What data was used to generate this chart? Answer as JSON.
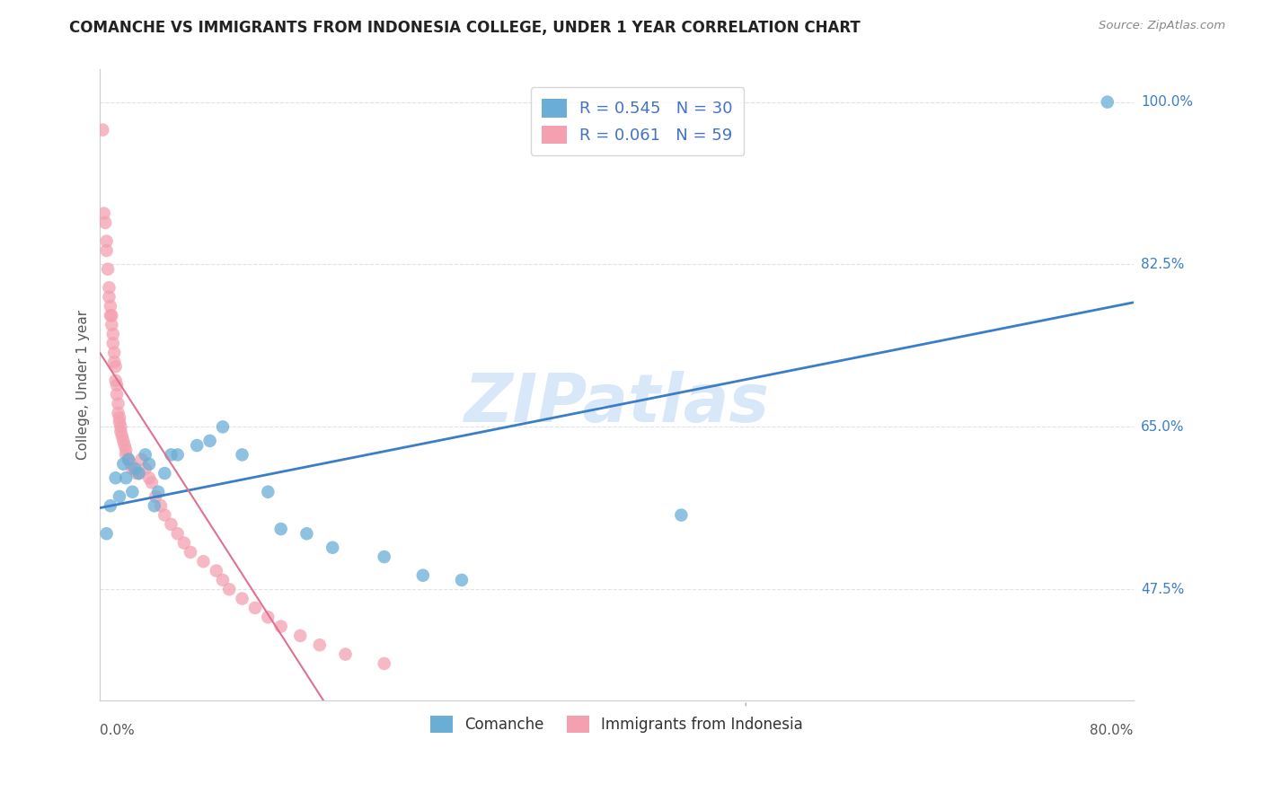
{
  "title": "COMANCHE VS IMMIGRANTS FROM INDONESIA COLLEGE, UNDER 1 YEAR CORRELATION CHART",
  "source_text": "Source: ZipAtlas.com",
  "ylabel": "College, Under 1 year",
  "xlabel_bottom_left": "0.0%",
  "xlabel_bottom_right": "80.0%",
  "right_ytick_vals": [
    0.475,
    0.65,
    0.825,
    1.0
  ],
  "right_ytick_labels": [
    "47.5%",
    "65.0%",
    "82.5%",
    "100.0%"
  ],
  "xlim": [
    0.0,
    0.8
  ],
  "ylim": [
    0.355,
    1.035
  ],
  "blue_color": "#6aaed6",
  "pink_color": "#f4a0b0",
  "blue_line_color": "#3a7ec8",
  "pink_line_color": "#e07090",
  "watermark_color": "#c8d8f0",
  "background_color": "#ffffff",
  "grid_color": "#dce3ed",
  "legend_blue_label": "R = 0.545   N = 30",
  "legend_pink_label": "R = 0.061   N = 59",
  "legend_blue_label_colored": [
    "R = ",
    "0.545",
    "   N = ",
    "30"
  ],
  "legend_pink_label_colored": [
    "R = ",
    "0.061",
    "   N = ",
    "59"
  ],
  "comanche_x": [
    0.005,
    0.008,
    0.012,
    0.015,
    0.018,
    0.02,
    0.022,
    0.025,
    0.027,
    0.03,
    0.035,
    0.038,
    0.042,
    0.045,
    0.05,
    0.055,
    0.06,
    0.075,
    0.085,
    0.095,
    0.11,
    0.13,
    0.14,
    0.16,
    0.18,
    0.22,
    0.25,
    0.28,
    0.45,
    0.78
  ],
  "comanche_y": [
    0.535,
    0.565,
    0.595,
    0.575,
    0.61,
    0.595,
    0.615,
    0.58,
    0.605,
    0.6,
    0.62,
    0.61,
    0.565,
    0.58,
    0.6,
    0.62,
    0.62,
    0.63,
    0.635,
    0.65,
    0.62,
    0.58,
    0.54,
    0.535,
    0.52,
    0.51,
    0.49,
    0.485,
    0.555,
    1.0
  ],
  "indonesia_x": [
    0.002,
    0.003,
    0.004,
    0.005,
    0.005,
    0.006,
    0.007,
    0.007,
    0.008,
    0.008,
    0.009,
    0.009,
    0.01,
    0.01,
    0.011,
    0.011,
    0.012,
    0.012,
    0.013,
    0.013,
    0.014,
    0.014,
    0.015,
    0.015,
    0.016,
    0.016,
    0.017,
    0.018,
    0.019,
    0.02,
    0.02,
    0.022,
    0.024,
    0.025,
    0.028,
    0.03,
    0.032,
    0.035,
    0.038,
    0.04,
    0.043,
    0.047,
    0.05,
    0.055,
    0.06,
    0.065,
    0.07,
    0.08,
    0.09,
    0.095,
    0.1,
    0.11,
    0.12,
    0.13,
    0.14,
    0.155,
    0.17,
    0.19,
    0.22
  ],
  "indonesia_y": [
    0.97,
    0.88,
    0.87,
    0.85,
    0.84,
    0.82,
    0.8,
    0.79,
    0.78,
    0.77,
    0.77,
    0.76,
    0.75,
    0.74,
    0.73,
    0.72,
    0.715,
    0.7,
    0.695,
    0.685,
    0.675,
    0.665,
    0.66,
    0.655,
    0.65,
    0.645,
    0.64,
    0.635,
    0.63,
    0.625,
    0.62,
    0.615,
    0.61,
    0.605,
    0.6,
    0.6,
    0.615,
    0.605,
    0.595,
    0.59,
    0.575,
    0.565,
    0.555,
    0.545,
    0.535,
    0.525,
    0.515,
    0.505,
    0.495,
    0.485,
    0.475,
    0.465,
    0.455,
    0.445,
    0.435,
    0.425,
    0.415,
    0.405,
    0.395
  ]
}
